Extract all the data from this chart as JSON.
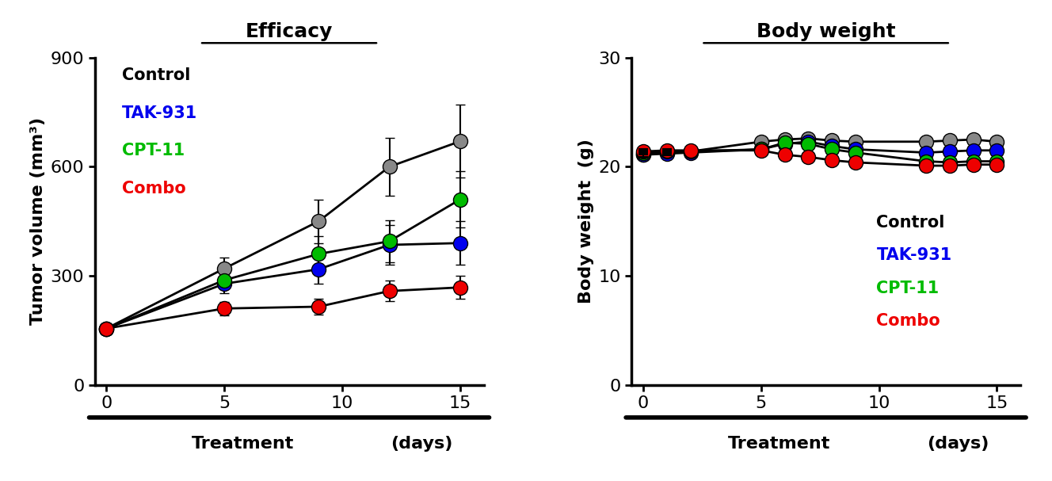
{
  "efficacy": {
    "title": "Efficacy",
    "xlabel_left": "Treatment",
    "xlabel_right": "(days)",
    "ylabel": "Tumor volume (mm³)",
    "x": [
      0,
      5,
      9,
      12,
      15
    ],
    "control": {
      "y": [
        155,
        320,
        450,
        600,
        670
      ],
      "yerr": [
        10,
        30,
        60,
        80,
        100
      ],
      "color": "#888888",
      "label": "Control"
    },
    "tak931": {
      "y": [
        155,
        278,
        318,
        385,
        390
      ],
      "yerr": [
        10,
        25,
        40,
        55,
        60
      ],
      "color": "#0000EE",
      "label": "TAK-931"
    },
    "cpt11": {
      "y": [
        155,
        288,
        360,
        395,
        510
      ],
      "yerr": [
        10,
        22,
        48,
        58,
        78
      ],
      "color": "#00BB00",
      "label": "CPT-11"
    },
    "combo": {
      "y": [
        155,
        210,
        215,
        258,
        268
      ],
      "yerr": [
        10,
        18,
        22,
        28,
        32
      ],
      "color": "#EE0000",
      "label": "Combo"
    },
    "ylim": [
      0,
      900
    ],
    "yticks": [
      0,
      300,
      600,
      900
    ],
    "xlim": [
      -0.5,
      16
    ],
    "xticks": [
      0,
      5,
      10,
      15
    ]
  },
  "bodyweight": {
    "title": "Body weight",
    "xlabel_left": "Treatment",
    "xlabel_right": "(days)",
    "ylabel": "Body weight  (g)",
    "x": [
      0,
      1,
      2,
      5,
      6,
      7,
      8,
      9,
      12,
      13,
      14,
      15
    ],
    "control": {
      "y": [
        21.1,
        21.3,
        21.4,
        22.3,
        22.5,
        22.6,
        22.4,
        22.3,
        22.3,
        22.4,
        22.5,
        22.3
      ],
      "color": "#888888",
      "label": "Control"
    },
    "tak931": {
      "y": [
        21.1,
        21.2,
        21.3,
        21.6,
        22.1,
        22.3,
        21.9,
        21.6,
        21.3,
        21.4,
        21.5,
        21.5
      ],
      "color": "#0000EE",
      "label": "TAK-931"
    },
    "cpt11": {
      "y": [
        21.3,
        21.4,
        21.4,
        21.6,
        22.2,
        22.1,
        21.6,
        21.3,
        20.5,
        20.4,
        20.5,
        20.5
      ],
      "color": "#00BB00",
      "label": "CPT-11"
    },
    "combo": {
      "y": [
        21.4,
        21.5,
        21.5,
        21.5,
        21.1,
        20.9,
        20.6,
        20.4,
        20.1,
        20.1,
        20.2,
        20.2
      ],
      "color": "#EE0000",
      "label": "Combo"
    },
    "ylim": [
      0,
      30
    ],
    "yticks": [
      0,
      10,
      20,
      30
    ],
    "xlim": [
      -0.5,
      16
    ],
    "xticks": [
      0,
      5,
      10,
      15
    ]
  },
  "legend_labels": [
    "Control",
    "TAK-931",
    "CPT-11",
    "Combo"
  ],
  "legend_colors": [
    "#000000",
    "#0000EE",
    "#00BB00",
    "#EE0000"
  ],
  "background_color": "#FFFFFF",
  "marker_size": 13,
  "line_width": 2.0,
  "errorbar_capsize": 4,
  "errorbar_linewidth": 1.5,
  "line_color": "#000000"
}
